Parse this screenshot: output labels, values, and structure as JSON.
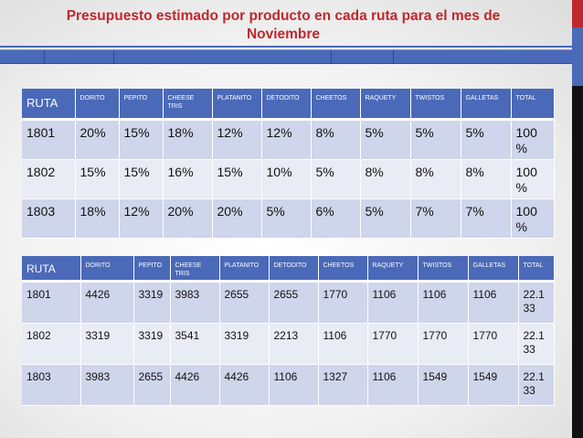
{
  "title_line1": "Presupuesto estimado por producto en cada ruta para el mes de",
  "title_line2": "Noviembre",
  "colors": {
    "title": "#c0272d",
    "header_blue": "#4a69b8",
    "row_dark": "#cfd5ea",
    "row_light": "#e9ebf5"
  },
  "table1": {
    "headers": [
      "RUTA",
      "DORITO",
      "PEPITO",
      "CHEESE TRIS",
      "PLATANITO",
      "DETODITO",
      "CHEETOS",
      "RAQUETY",
      "TWISTOS",
      "GALLETAS",
      "TOTAL"
    ],
    "rows": [
      [
        "1801",
        "20%",
        "15%",
        "18%",
        "12%",
        "12%",
        "8%",
        "5%",
        "5%",
        "5%",
        "100 %"
      ],
      [
        "1802",
        "15%",
        "15%",
        "16%",
        "15%",
        "10%",
        "5%",
        "8%",
        "8%",
        "8%",
        "100 %"
      ],
      [
        "1803",
        "18%",
        "12%",
        "20%",
        "20%",
        "5%",
        "6%",
        "5%",
        "7%",
        "7%",
        "100 %"
      ]
    ]
  },
  "table2": {
    "headers": [
      "RUTA",
      "DORITO",
      "PEPITO",
      "CHEESE TRIS",
      "PLATANITO",
      "DETODITO",
      "CHEETOS",
      "RAQUETY",
      "TWISTOS",
      "GALLETAS",
      "TOTAL"
    ],
    "rows": [
      [
        "1801",
        "4426",
        "3319",
        "3983",
        "2655",
        "2655",
        "1770",
        "1106",
        "1106",
        "1106",
        "22.133"
      ],
      [
        "1802",
        "3319",
        "3319",
        "3541",
        "3319",
        "2213",
        "1106",
        "1770",
        "1770",
        "1770",
        "22.133"
      ],
      [
        "1803",
        "3983",
        "2655",
        "4426",
        "4426",
        "1106",
        "1327",
        "1106",
        "1549",
        "1549",
        "22.133"
      ]
    ]
  }
}
